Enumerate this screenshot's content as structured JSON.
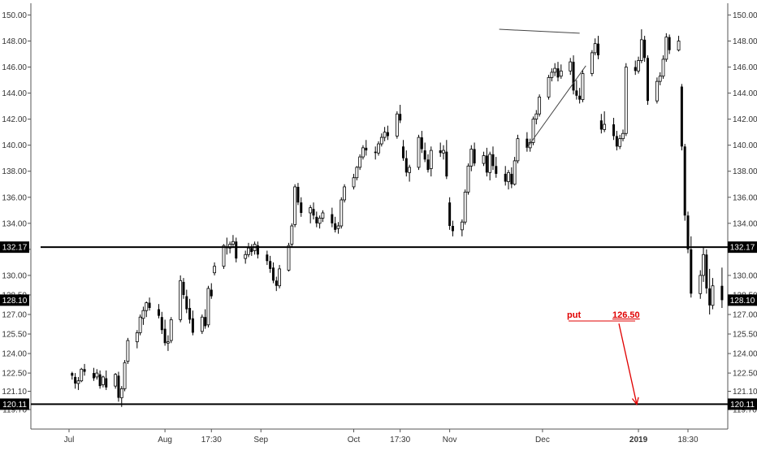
{
  "chart_data": {
    "type": "candlestick",
    "title": "",
    "xlabel": "",
    "ylabel": "",
    "ylim": [
      118.2,
      150.9
    ],
    "grid": false,
    "y_ticks": [
      "150.00",
      "148.00",
      "146.00",
      "144.00",
      "142.00",
      "140.00",
      "138.00",
      "136.00",
      "134.00",
      "132.00",
      "130.00",
      "128.50",
      "127.00",
      "125.50",
      "124.00",
      "122.50",
      "121.10",
      "119.70"
    ],
    "x_ticks": [
      {
        "label": "Jul",
        "day": 0,
        "bold": false
      },
      {
        "label": "Aug",
        "day": 31,
        "bold": false
      },
      {
        "label": "17:30",
        "day": 46,
        "bold": false
      },
      {
        "label": "Sep",
        "day": 62,
        "bold": false
      },
      {
        "label": "Oct",
        "day": 92,
        "bold": false
      },
      {
        "label": "17:30",
        "day": 107,
        "bold": false
      },
      {
        "label": "Nov",
        "day": 123,
        "bold": false
      },
      {
        "label": "Dec",
        "day": 153,
        "bold": false
      },
      {
        "label": "2019",
        "day": 184,
        "bold": true
      },
      {
        "label": "18:30",
        "day": 200,
        "bold": false
      }
    ],
    "levels": [
      {
        "label": "132.17",
        "value": 132.17
      },
      {
        "label": "120.11",
        "value": 120.11
      }
    ],
    "last_price": "128.10",
    "last_price_value": 128.1,
    "annotation": {
      "label": "put",
      "value_label": "126.50",
      "value": 126.5,
      "color": "#e00000"
    },
    "trendlines": [
      {
        "from": [
          139,
          148.9
        ],
        "to": [
          165,
          148.6
        ]
      },
      {
        "from": [
          148,
          139.8
        ],
        "to": [
          167,
          146.1
        ]
      }
    ],
    "arrow": {
      "from": [
        161,
        126.3
      ],
      "to": [
        176,
        120.1
      ],
      "color": "#e00000"
    },
    "candles": [
      [
        122.5,
        122.6,
        122.0,
        122.3
      ],
      [
        122.2,
        122.5,
        121.3,
        121.7
      ],
      [
        121.7,
        122.2,
        121.2,
        121.9
      ],
      [
        121.9,
        122.9,
        121.8,
        122.8
      ],
      [
        122.8,
        123.2,
        122.3,
        122.6
      ],
      [
        122.5,
        122.9,
        121.9,
        122.1
      ],
      [
        122.2,
        122.8,
        122.0,
        122.5
      ],
      [
        122.4,
        122.7,
        121.3,
        121.5
      ],
      [
        121.6,
        122.3,
        121.4,
        122.2
      ],
      [
        122.1,
        122.7,
        121.2,
        121.4
      ],
      [
        121.5,
        122.5,
        121.3,
        122.4
      ],
      [
        122.3,
        122.6,
        120.3,
        120.6
      ],
      [
        120.6,
        121.5,
        119.9,
        121.3
      ],
      [
        121.3,
        123.5,
        121.1,
        123.3
      ],
      [
        123.4,
        125.2,
        123.2,
        125.0
      ],
      [
        124.9,
        125.8,
        124.4,
        125.6
      ],
      [
        125.6,
        127.0,
        125.4,
        126.8
      ],
      [
        126.7,
        127.6,
        126.2,
        127.3
      ],
      [
        127.3,
        128.0,
        126.8,
        127.9
      ],
      [
        127.9,
        128.3,
        127.3,
        127.5
      ],
      [
        127.4,
        127.8,
        126.7,
        126.9
      ],
      [
        126.8,
        127.2,
        125.5,
        125.8
      ],
      [
        125.9,
        126.6,
        124.6,
        124.8
      ],
      [
        124.8,
        125.4,
        124.2,
        124.9
      ],
      [
        125.0,
        126.8,
        124.8,
        126.6
      ],
      [
        126.6,
        130.0,
        126.4,
        129.6
      ],
      [
        129.5,
        129.8,
        128.2,
        128.5
      ],
      [
        128.4,
        128.9,
        127.1,
        127.4
      ],
      [
        127.5,
        128.2,
        126.3,
        126.6
      ],
      [
        126.7,
        127.3,
        125.4,
        125.6
      ],
      [
        125.7,
        127.0,
        125.5,
        126.8
      ],
      [
        126.8,
        127.4,
        125.9,
        126.1
      ],
      [
        126.2,
        129.2,
        126.0,
        129.0
      ],
      [
        128.9,
        129.4,
        128.2,
        128.4
      ],
      [
        130.2,
        131.0,
        130.0,
        130.7
      ],
      [
        130.7,
        132.4,
        130.5,
        132.3
      ],
      [
        132.2,
        132.9,
        131.6,
        132.1
      ],
      [
        132.1,
        132.6,
        131.7,
        132.4
      ],
      [
        132.4,
        133.1,
        132.1,
        132.6
      ],
      [
        132.6,
        132.9,
        131.0,
        131.3
      ],
      [
        131.3,
        131.9,
        130.9,
        131.6
      ],
      [
        131.6,
        132.5,
        131.4,
        132.1
      ],
      [
        132.1,
        132.4,
        131.5,
        131.8
      ],
      [
        131.9,
        132.6,
        131.6,
        132.4
      ],
      [
        132.3,
        132.6,
        131.3,
        131.6
      ],
      [
        131.6,
        131.9,
        130.8,
        131.1
      ],
      [
        131.1,
        131.5,
        130.2,
        130.5
      ],
      [
        130.6,
        131.0,
        129.4,
        129.6
      ],
      [
        129.6,
        129.9,
        128.8,
        129.2
      ],
      [
        129.2,
        130.8,
        129.0,
        130.5
      ],
      [
        130.4,
        132.5,
        130.3,
        132.3
      ],
      [
        132.4,
        134.0,
        132.2,
        133.8
      ],
      [
        133.9,
        137.0,
        133.7,
        136.8
      ],
      [
        136.8,
        137.1,
        135.4,
        135.6
      ],
      [
        135.6,
        136.0,
        134.5,
        134.8
      ],
      [
        134.8,
        135.4,
        134.0,
        135.2
      ],
      [
        135.1,
        135.6,
        134.3,
        134.6
      ],
      [
        134.5,
        134.9,
        133.7,
        134.0
      ],
      [
        134.0,
        134.6,
        133.6,
        134.4
      ],
      [
        134.4,
        135.0,
        134.1,
        134.8
      ],
      [
        134.7,
        135.2,
        133.7,
        134.0
      ],
      [
        134.0,
        134.5,
        133.3,
        133.5
      ],
      [
        133.6,
        134.1,
        133.2,
        133.8
      ],
      [
        133.8,
        136.0,
        133.6,
        135.8
      ],
      [
        135.8,
        137.0,
        135.6,
        136.8
      ],
      [
        136.8,
        137.8,
        136.6,
        137.5
      ],
      [
        137.5,
        138.4,
        137.3,
        138.3
      ],
      [
        138.3,
        139.3,
        138.1,
        139.1
      ],
      [
        139.1,
        140.0,
        138.9,
        139.8
      ],
      [
        139.8,
        140.4,
        139.2,
        139.6
      ],
      [
        139.5,
        139.9,
        138.9,
        139.4
      ],
      [
        139.4,
        140.3,
        139.2,
        140.1
      ],
      [
        140.1,
        140.9,
        139.9,
        140.6
      ],
      [
        140.6,
        141.4,
        140.3,
        141.0
      ],
      [
        141.0,
        141.5,
        140.4,
        140.7
      ],
      [
        140.7,
        142.6,
        140.5,
        142.4
      ],
      [
        142.4,
        143.1,
        141.7,
        141.9
      ],
      [
        139.9,
        140.4,
        138.8,
        139.0
      ],
      [
        139.0,
        139.6,
        137.6,
        137.9
      ],
      [
        137.9,
        138.5,
        137.2,
        138.3
      ],
      [
        138.3,
        140.8,
        138.1,
        140.6
      ],
      [
        140.6,
        141.1,
        139.4,
        139.7
      ],
      [
        139.6,
        140.2,
        138.7,
        138.9
      ],
      [
        138.9,
        139.3,
        137.9,
        138.1
      ],
      [
        138.2,
        139.9,
        137.6,
        139.6
      ],
      [
        139.6,
        140.2,
        139.1,
        139.4
      ],
      [
        139.4,
        140.0,
        138.9,
        139.6
      ],
      [
        139.5,
        140.4,
        137.4,
        137.6
      ],
      [
        135.6,
        136.0,
        133.5,
        133.8
      ],
      [
        133.8,
        134.2,
        133.0,
        133.4
      ],
      [
        133.5,
        134.3,
        133.0,
        134.1
      ],
      [
        134.1,
        136.6,
        133.9,
        136.4
      ],
      [
        136.4,
        138.6,
        136.2,
        138.4
      ],
      [
        138.4,
        140.0,
        138.0,
        139.7
      ],
      [
        139.7,
        140.2,
        138.4,
        138.6
      ],
      [
        138.6,
        139.5,
        138.4,
        139.2
      ],
      [
        139.2,
        139.8,
        137.6,
        137.9
      ],
      [
        137.9,
        139.5,
        137.3,
        139.3
      ],
      [
        139.3,
        139.9,
        138.1,
        138.4
      ],
      [
        138.4,
        139.1,
        137.5,
        137.8
      ],
      [
        137.8,
        138.4,
        136.9,
        137.2
      ],
      [
        137.2,
        138.1,
        136.6,
        137.9
      ],
      [
        137.8,
        138.3,
        136.7,
        137.0
      ],
      [
        137.0,
        139.1,
        136.9,
        138.8
      ],
      [
        138.8,
        140.8,
        138.6,
        140.5
      ],
      [
        140.5,
        141.0,
        139.5,
        139.8
      ],
      [
        139.8,
        140.5,
        139.5,
        140.2
      ],
      [
        140.2,
        142.2,
        140.0,
        142.0
      ],
      [
        142.0,
        142.7,
        141.6,
        142.4
      ],
      [
        142.4,
        143.9,
        142.2,
        143.7
      ],
      [
        143.7,
        145.4,
        143.5,
        145.2
      ],
      [
        145.2,
        145.9,
        144.9,
        145.6
      ],
      [
        145.6,
        146.3,
        145.3,
        145.9
      ],
      [
        145.9,
        146.4,
        144.9,
        145.2
      ],
      [
        145.3,
        146.2,
        145.1,
        145.7
      ],
      [
        145.7,
        146.7,
        145.4,
        146.4
      ],
      [
        146.4,
        146.9,
        143.9,
        144.2
      ],
      [
        144.2,
        145.0,
        143.5,
        143.8
      ],
      [
        143.8,
        144.4,
        143.2,
        143.5
      ],
      [
        143.5,
        145.8,
        143.3,
        145.5
      ],
      [
        145.5,
        147.3,
        145.3,
        147.1
      ],
      [
        147.1,
        148.2,
        146.9,
        147.8
      ],
      [
        147.8,
        148.4,
        146.6,
        146.9
      ],
      [
        141.9,
        142.4,
        140.9,
        141.2
      ],
      [
        141.2,
        142.6,
        141.0,
        141.6
      ],
      [
        141.6,
        142.1,
        140.4,
        140.7
      ],
      [
        140.7,
        141.1,
        139.6,
        139.9
      ],
      [
        139.9,
        140.8,
        139.7,
        140.5
      ],
      [
        140.5,
        141.2,
        140.3,
        140.9
      ],
      [
        140.9,
        146.3,
        140.7,
        146.0
      ],
      [
        146.0,
        146.5,
        145.4,
        145.7
      ],
      [
        145.7,
        146.8,
        145.5,
        146.5
      ],
      [
        146.5,
        148.9,
        146.3,
        148.1
      ],
      [
        148.1,
        148.4,
        146.4,
        146.7
      ],
      [
        146.7,
        146.9,
        143.1,
        143.4
      ],
      [
        143.4,
        145.2,
        143.2,
        144.9
      ],
      [
        144.9,
        145.6,
        144.6,
        145.3
      ],
      [
        145.3,
        146.9,
        145.1,
        146.6
      ],
      [
        146.6,
        148.6,
        146.4,
        148.3
      ],
      [
        148.3,
        148.5,
        147.0,
        147.3
      ],
      [
        147.3,
        148.4,
        147.2,
        148.0
      ],
      [
        144.5,
        144.7,
        139.6,
        139.9
      ],
      [
        139.9,
        140.1,
        134.2,
        134.6
      ],
      [
        134.6,
        134.9,
        131.7,
        132.0
      ],
      [
        132.0,
        133.0,
        128.3,
        128.6
      ],
      [
        128.6,
        130.4,
        128.2,
        130.0
      ],
      [
        130.0,
        132.2,
        129.5,
        131.6
      ],
      [
        131.6,
        132.0,
        128.6,
        129.0
      ],
      [
        129.0,
        130.5,
        127.0,
        127.7
      ],
      [
        127.7,
        129.8,
        127.4,
        129.2
      ],
      [
        129.2,
        130.6,
        127.5,
        128.1
      ]
    ]
  }
}
